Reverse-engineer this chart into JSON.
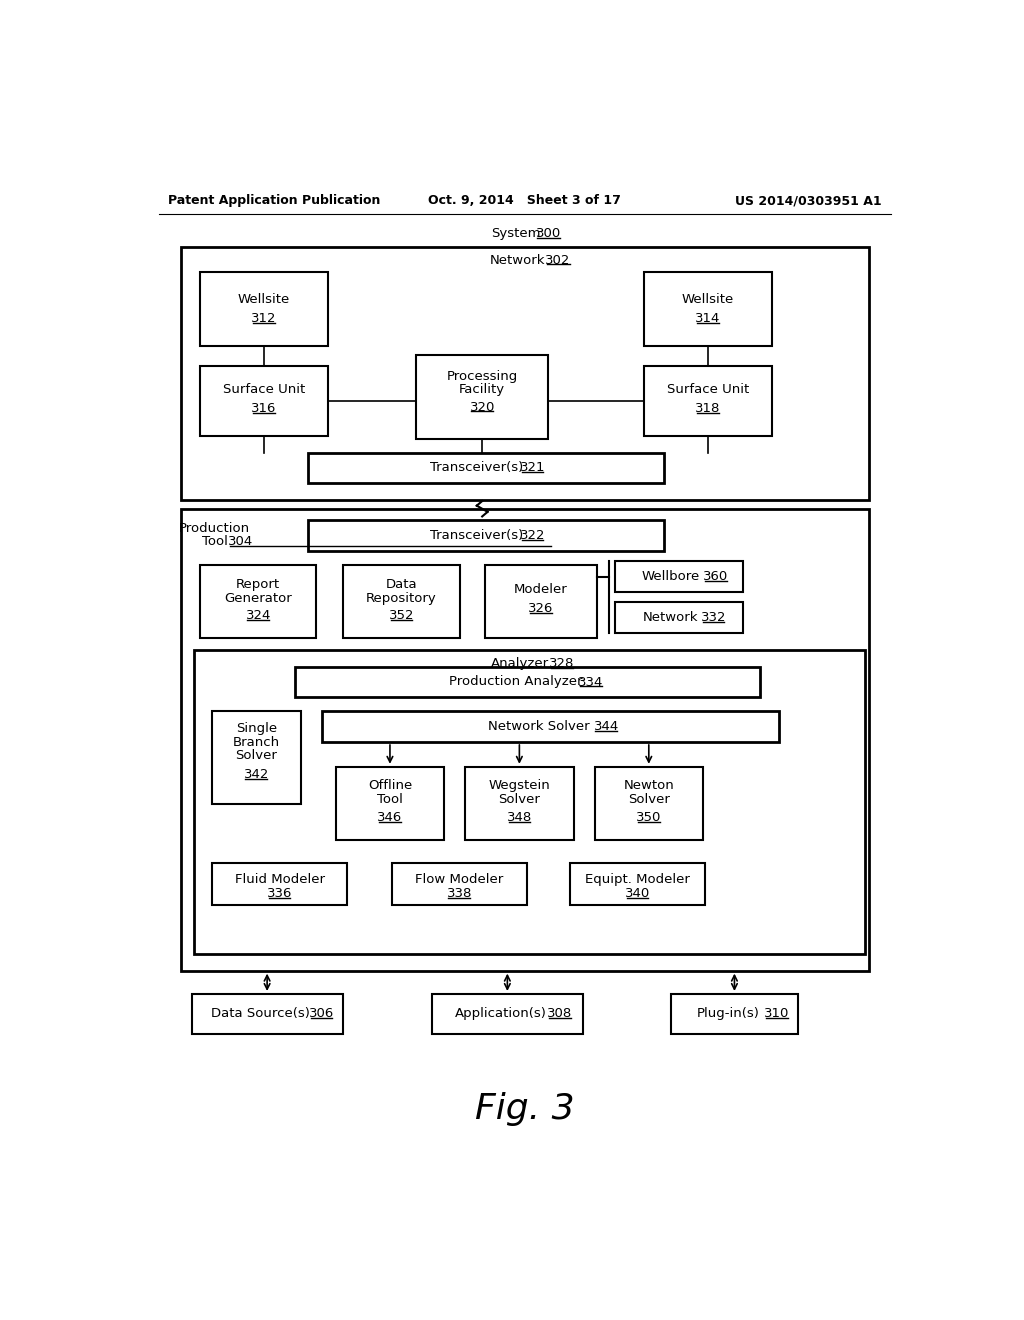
{
  "bg": "#ffffff",
  "header_left": "Patent Application Publication",
  "header_mid": "Oct. 9, 2014   Sheet 3 of 17",
  "header_right": "US 2014/0303951 A1"
}
